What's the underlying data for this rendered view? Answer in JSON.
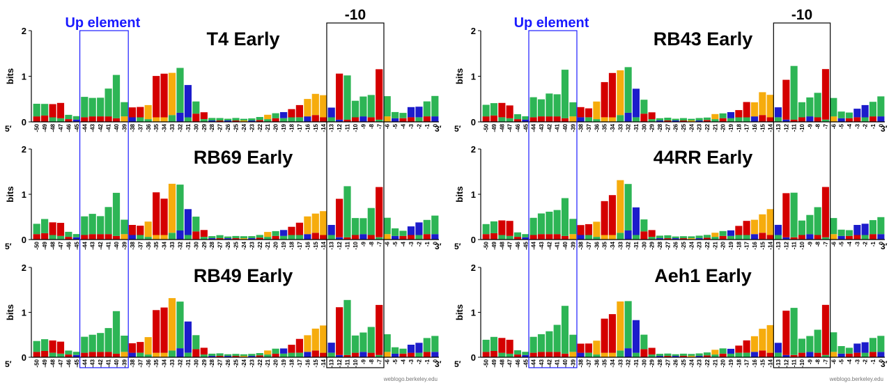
{
  "figure": {
    "panels": [
      {
        "title": "T4 Early"
      },
      {
        "title": "RB43 Early"
      },
      {
        "title": "RB69 Early"
      },
      {
        "title": "44RR Early"
      },
      {
        "title": "RB49 Early"
      },
      {
        "title": "Aeh1 Early"
      }
    ],
    "up_element_label": "Up element",
    "minus10_label": "-10",
    "y_axis_label": "bits",
    "y_ticks": [
      "0",
      "1",
      "2"
    ],
    "end_labels": {
      "five_prime": "5′",
      "three_prime": "3′"
    },
    "x_positions": [
      "-50",
      "-49",
      "-48",
      "-47",
      "-46",
      "-45",
      "-44",
      "-43",
      "-42",
      "-41",
      "-40",
      "-39",
      "-38",
      "-37",
      "-36",
      "-35",
      "-34",
      "-33",
      "-32",
      "-31",
      "-30",
      "-29",
      "-28",
      "-27",
      "-26",
      "-25",
      "-24",
      "-23",
      "-22",
      "-21",
      "-20",
      "-19",
      "-18",
      "-17",
      "-16",
      "-15",
      "-14",
      "-13",
      "-12",
      "-11",
      "-10",
      "-9",
      "-8",
      "-7",
      "-6",
      "-5",
      "-4",
      "-3",
      "-2",
      "-1",
      "0"
    ],
    "credit": "weblogo.berkeley.edu",
    "colors": {
      "A": "#22b14c",
      "C": "#1010c8",
      "G": "#f5a800",
      "T": "#d40000",
      "box_up": "#1a1aff",
      "box_minus10": "#000000"
    }
  }
}
